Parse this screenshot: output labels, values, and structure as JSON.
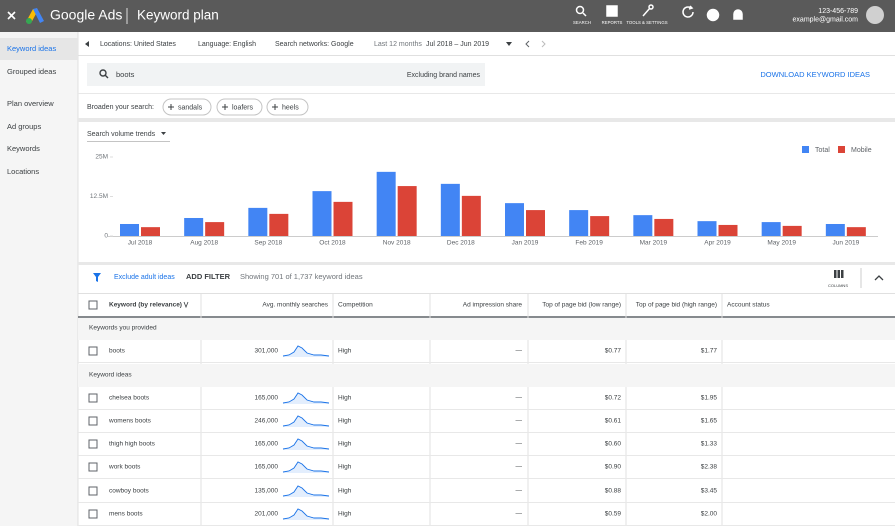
{
  "header": {
    "product": "Google Ads",
    "page": "Keyword plan",
    "nav": [
      "SEARCH",
      "REPORTS",
      "TOOLS & SETTINGS"
    ],
    "account_id": "123-456-789",
    "email": "example@gmail.com"
  },
  "sidebar": {
    "items": [
      {
        "label": "Keyword ideas",
        "active": true
      },
      {
        "label": "Grouped ideas"
      },
      {
        "label": "Plan overview"
      },
      {
        "label": "Ad groups"
      },
      {
        "label": "Keywords"
      },
      {
        "label": "Locations"
      }
    ]
  },
  "filters": {
    "location": "Locations: United States",
    "language": "Language: English",
    "networks": "Search networks: Google",
    "period_label": "Last 12 months",
    "period": "Jul 2018 – Jun 2019"
  },
  "search": {
    "query": "boots",
    "brand_filter": "Excluding brand names",
    "download": "DOWNLOAD KEYWORD IDEAS",
    "broaden_label": "Broaden your search:",
    "suggestions": [
      "sandals",
      "loafers",
      "heels"
    ]
  },
  "chart_data": {
    "type": "bar",
    "control": "Search volume trends",
    "categories": [
      "Jul 2018",
      "Aug 2018",
      "Sep 2018",
      "Oct 2018",
      "Nov 2018",
      "Dec 2018",
      "Jan 2019",
      "Feb 2019",
      "Mar 2019",
      "Apr 2019",
      "May 2019",
      "Jun 2019"
    ],
    "series": [
      {
        "name": "Total",
        "color": "#4285f4",
        "values": [
          3800000,
          5700000,
          8900000,
          14200000,
          20300000,
          16500000,
          10400000,
          8200000,
          6600000,
          4700000,
          4400000,
          3800000
        ]
      },
      {
        "name": "Mobile",
        "color": "#db4437",
        "values": [
          2800000,
          4400000,
          7000000,
          10800000,
          15800000,
          12700000,
          8200000,
          6300000,
          5400000,
          3500000,
          3200000,
          2800000
        ]
      }
    ],
    "ylim": [
      0,
      25000000
    ],
    "yticks": [
      {
        "value": 0,
        "label": "0"
      },
      {
        "value": 12500000,
        "label": "12.5M"
      },
      {
        "value": 25000000,
        "label": "25M"
      }
    ],
    "legend": "top-right",
    "grid": false
  },
  "toolbar": {
    "exclude": "Exclude adult ideas",
    "add_filter": "ADD FILTER",
    "showing": "Showing 701 of 1,737 keyword ideas",
    "columns": "COLUMNS"
  },
  "table": {
    "columns": [
      "Keyword (by relevance)",
      "Avg. monthly searches",
      "Competition",
      "Ad impression share",
      "Top of page bid (low range)",
      "Top of page bid (high range)",
      "Account status"
    ],
    "sections": [
      {
        "title": "Keywords you provided",
        "rows": [
          {
            "keyword": "boots",
            "searches": "301,000",
            "competition": "High",
            "impression_share": "—",
            "bid_low": "$0.77",
            "bid_high": "$1.77"
          }
        ]
      },
      {
        "title": "Keyword ideas",
        "rows": [
          {
            "keyword": "chelsea boots",
            "searches": "165,000",
            "competition": "High",
            "impression_share": "—",
            "bid_low": "$0.72",
            "bid_high": "$1.95"
          },
          {
            "keyword": "womens boots",
            "searches": "246,000",
            "competition": "High",
            "impression_share": "—",
            "bid_low": "$0.61",
            "bid_high": "$1.65"
          },
          {
            "keyword": "thigh high boots",
            "searches": "165,000",
            "competition": "High",
            "impression_share": "—",
            "bid_low": "$0.60",
            "bid_high": "$1.33"
          },
          {
            "keyword": "work boots",
            "searches": "165,000",
            "competition": "High",
            "impression_share": "—",
            "bid_low": "$0.90",
            "bid_high": "$2.38"
          },
          {
            "keyword": "cowboy boots",
            "searches": "135,000",
            "competition": "High",
            "impression_share": "—",
            "bid_low": "$0.88",
            "bid_high": "$3.45"
          },
          {
            "keyword": "mens boots",
            "searches": "201,000",
            "competition": "High",
            "impression_share": "—",
            "bid_low": "$0.59",
            "bid_high": "$2.00"
          }
        ]
      }
    ]
  }
}
